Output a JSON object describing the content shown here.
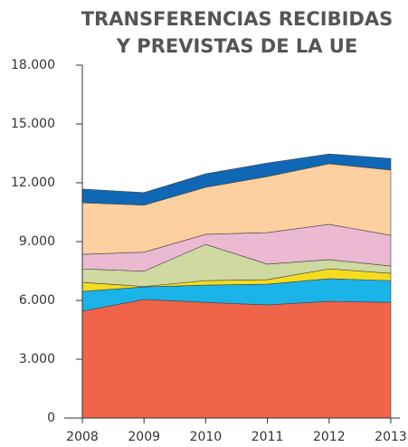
{
  "chart_data": {
    "type": "stacked_area",
    "title": [
      "TRANSFERENCIAS RECIBIDAS",
      "Y PREVISTAS DE LA UE"
    ],
    "categories": [
      "2008",
      "2009",
      "2010",
      "2011",
      "2012",
      "2013"
    ],
    "series": [
      {
        "color": "#f0644a",
        "values": [
          5450,
          6050,
          5900,
          5770,
          5950,
          5900
        ]
      },
      {
        "color": "#1ab4e8",
        "values": [
          1010,
          640,
          880,
          1060,
          1160,
          1110
        ]
      },
      {
        "color": "#f5dc1e",
        "values": [
          460,
          20,
          230,
          230,
          500,
          370
        ]
      },
      {
        "color": "#cfd9a0",
        "values": [
          690,
          780,
          1850,
          790,
          470,
          370
        ]
      },
      {
        "color": "#ebb9d2",
        "values": [
          740,
          970,
          510,
          1610,
          1800,
          1570
        ]
      },
      {
        "color": "#fecf9f",
        "values": [
          2630,
          2400,
          2400,
          2860,
          3090,
          3330
        ]
      },
      {
        "color": "#1067b5",
        "values": [
          700,
          640,
          690,
          690,
          500,
          590
        ]
      }
    ],
    "ylim": [
      0,
      18000
    ],
    "yticks": [
      0,
      {
        "value": 3000,
        "label": "3.000"
      },
      {
        "value": 6000,
        "label": "6.000"
      },
      {
        "value": 9000,
        "label": "9.000"
      },
      {
        "value": 12000,
        "label": "12.000"
      },
      {
        "value": 15000,
        "label": "15.000"
      },
      {
        "value": 18000,
        "label": "18.000"
      }
    ]
  }
}
